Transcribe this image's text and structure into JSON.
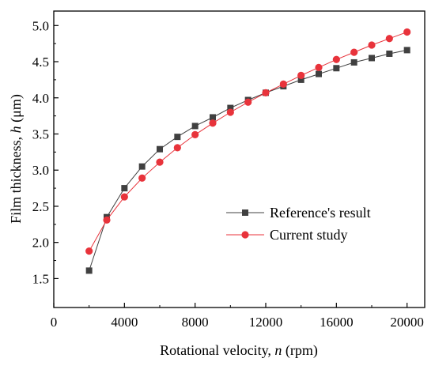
{
  "chart_data": {
    "type": "line",
    "xlabel_parts": [
      "Rotational velocity, ",
      "n",
      " (rpm)"
    ],
    "ylabel_parts": [
      "Film thickness, ",
      "h",
      " (μm)"
    ],
    "xlim": [
      0,
      21000
    ],
    "ylim": [
      1.1,
      5.2
    ],
    "x_ticks": [
      0,
      4000,
      8000,
      12000,
      16000,
      20000
    ],
    "y_ticks": [
      1.5,
      2.0,
      2.5,
      3.0,
      3.5,
      4.0,
      4.5,
      5.0
    ],
    "y_tick_labels": [
      "1.5",
      "2.0",
      "2.5",
      "3.0",
      "3.5",
      "4.0",
      "4.5",
      "5.0"
    ],
    "legend_position": "lower-right",
    "grid": false,
    "series": [
      {
        "name": "Reference's result",
        "marker": "square",
        "color": "#404040",
        "x": [
          2000,
          3000,
          4000,
          5000,
          6000,
          7000,
          8000,
          9000,
          10000,
          11000,
          12000,
          13000,
          14000,
          15000,
          16000,
          17000,
          18000,
          19000,
          20000
        ],
        "y": [
          1.61,
          2.35,
          2.75,
          3.05,
          3.29,
          3.46,
          3.61,
          3.73,
          3.86,
          3.97,
          4.07,
          4.16,
          4.25,
          4.33,
          4.41,
          4.49,
          4.55,
          4.61,
          4.66
        ]
      },
      {
        "name": "Current study",
        "marker": "circle",
        "color": "#e8333b",
        "x": [
          2000,
          3000,
          4000,
          5000,
          6000,
          7000,
          8000,
          9000,
          10000,
          11000,
          12000,
          13000,
          14000,
          15000,
          16000,
          17000,
          18000,
          19000,
          20000
        ],
        "y": [
          1.88,
          2.31,
          2.63,
          2.89,
          3.11,
          3.31,
          3.49,
          3.65,
          3.8,
          3.94,
          4.07,
          4.19,
          4.31,
          4.42,
          4.53,
          4.63,
          4.73,
          4.82,
          4.91
        ]
      }
    ]
  }
}
